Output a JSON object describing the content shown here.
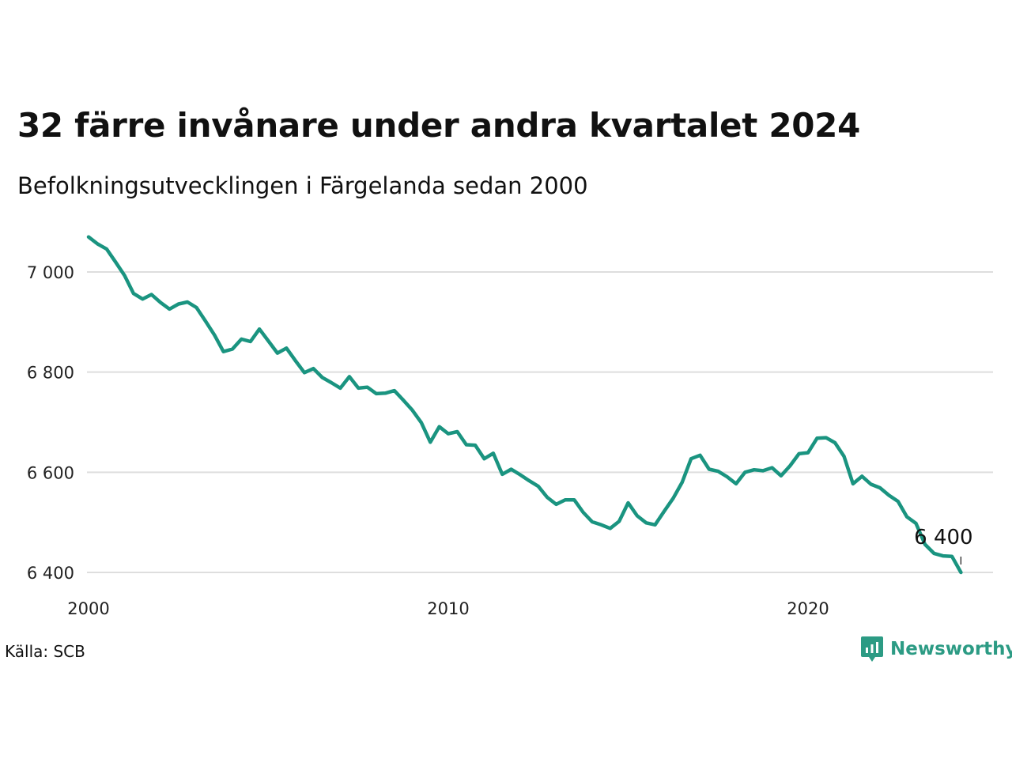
{
  "title": "32 färre invånare under andra kvartalet 2024",
  "subtitle": "Befolkningsutvecklingen i Färgelanda sedan 2000",
  "source": "Källa: SCB",
  "brand": {
    "name": "Newsworthy",
    "icon": "newsworthy-logo-icon",
    "color": "#2c9b84"
  },
  "chart_data": {
    "type": "line",
    "title": "32 färre invånare under andra kvartalet 2024",
    "subtitle": "Befolkningsutvecklingen i Färgelanda sedan 2000",
    "xlabel": "",
    "ylabel": "",
    "xlim": [
      2000,
      2025.3
    ],
    "ylim": [
      6390,
      7100
    ],
    "x_ticks": [
      2000,
      2010,
      2020
    ],
    "x_tick_labels": [
      "2000",
      "2010",
      "2020"
    ],
    "y_ticks": [
      6400,
      6600,
      6800,
      7000
    ],
    "y_tick_labels": [
      "6 400",
      "6 600",
      "6 800",
      "7 000"
    ],
    "grid": "horizontal",
    "line_color": "#1a9480",
    "end_label": "6 400",
    "series": [
      {
        "x": [
          2000.0,
          2000.25,
          2000.5,
          2000.75,
          2001.0,
          2001.25,
          2001.5,
          2001.75,
          2002.0,
          2002.25,
          2002.5,
          2002.75,
          2003.0,
          2003.25,
          2003.5,
          2003.75,
          2004.0,
          2004.25,
          2004.5,
          2004.75,
          2005.0,
          2005.25,
          2005.5,
          2005.75,
          2006.0,
          2006.25,
          2006.5,
          2006.75,
          2007.0,
          2007.25,
          2007.5,
          2007.75,
          2008.0,
          2008.25,
          2008.5,
          2008.75,
          2009.0,
          2009.25,
          2009.5,
          2009.75,
          2010.0,
          2010.25,
          2010.5,
          2010.75,
          2011.0,
          2011.25,
          2011.5,
          2011.75,
          2012.0,
          2012.25,
          2012.5,
          2012.75,
          2013.0,
          2013.25,
          2013.5,
          2013.75,
          2014.0,
          2014.25,
          2014.5,
          2014.75,
          2015.0,
          2015.25,
          2015.5,
          2015.75,
          2016.0,
          2016.25,
          2016.5,
          2016.75,
          2017.0,
          2017.25,
          2017.5,
          2017.75,
          2018.0,
          2018.25,
          2018.5,
          2018.75,
          2019.0,
          2019.25,
          2019.5,
          2019.75,
          2020.0,
          2020.25,
          2020.5,
          2020.75,
          2021.0,
          2021.25,
          2021.5,
          2021.75,
          2022.0,
          2022.25,
          2022.5,
          2022.75,
          2023.0,
          2023.25,
          2023.5,
          2023.75,
          2024.0,
          2024.25
        ],
        "values": [
          7070,
          7056,
          7046,
          7020,
          6993,
          6957,
          6946,
          6955,
          6939,
          6926,
          6936,
          6940,
          6929,
          6902,
          6874,
          6841,
          6846,
          6866,
          6861,
          6886,
          6862,
          6838,
          6848,
          6823,
          6799,
          6807,
          6789,
          6779,
          6768,
          6791,
          6768,
          6770,
          6757,
          6758,
          6763,
          6744,
          6724,
          6699,
          6660,
          6691,
          6677,
          6681,
          6655,
          6654,
          6627,
          6638,
          6596,
          6606,
          6595,
          6583,
          6572,
          6550,
          6536,
          6545,
          6545,
          6520,
          6501,
          6495,
          6488,
          6502,
          6539,
          6513,
          6499,
          6495,
          6522,
          6548,
          6580,
          6627,
          6634,
          6606,
          6602,
          6591,
          6577,
          6600,
          6605,
          6603,
          6609,
          6593,
          6613,
          6637,
          6639,
          6668,
          6669,
          6659,
          6632,
          6577,
          6592,
          6576,
          6569,
          6554,
          6542,
          6511,
          6498,
          6456,
          6438,
          6433,
          6432,
          6400
        ]
      }
    ]
  }
}
